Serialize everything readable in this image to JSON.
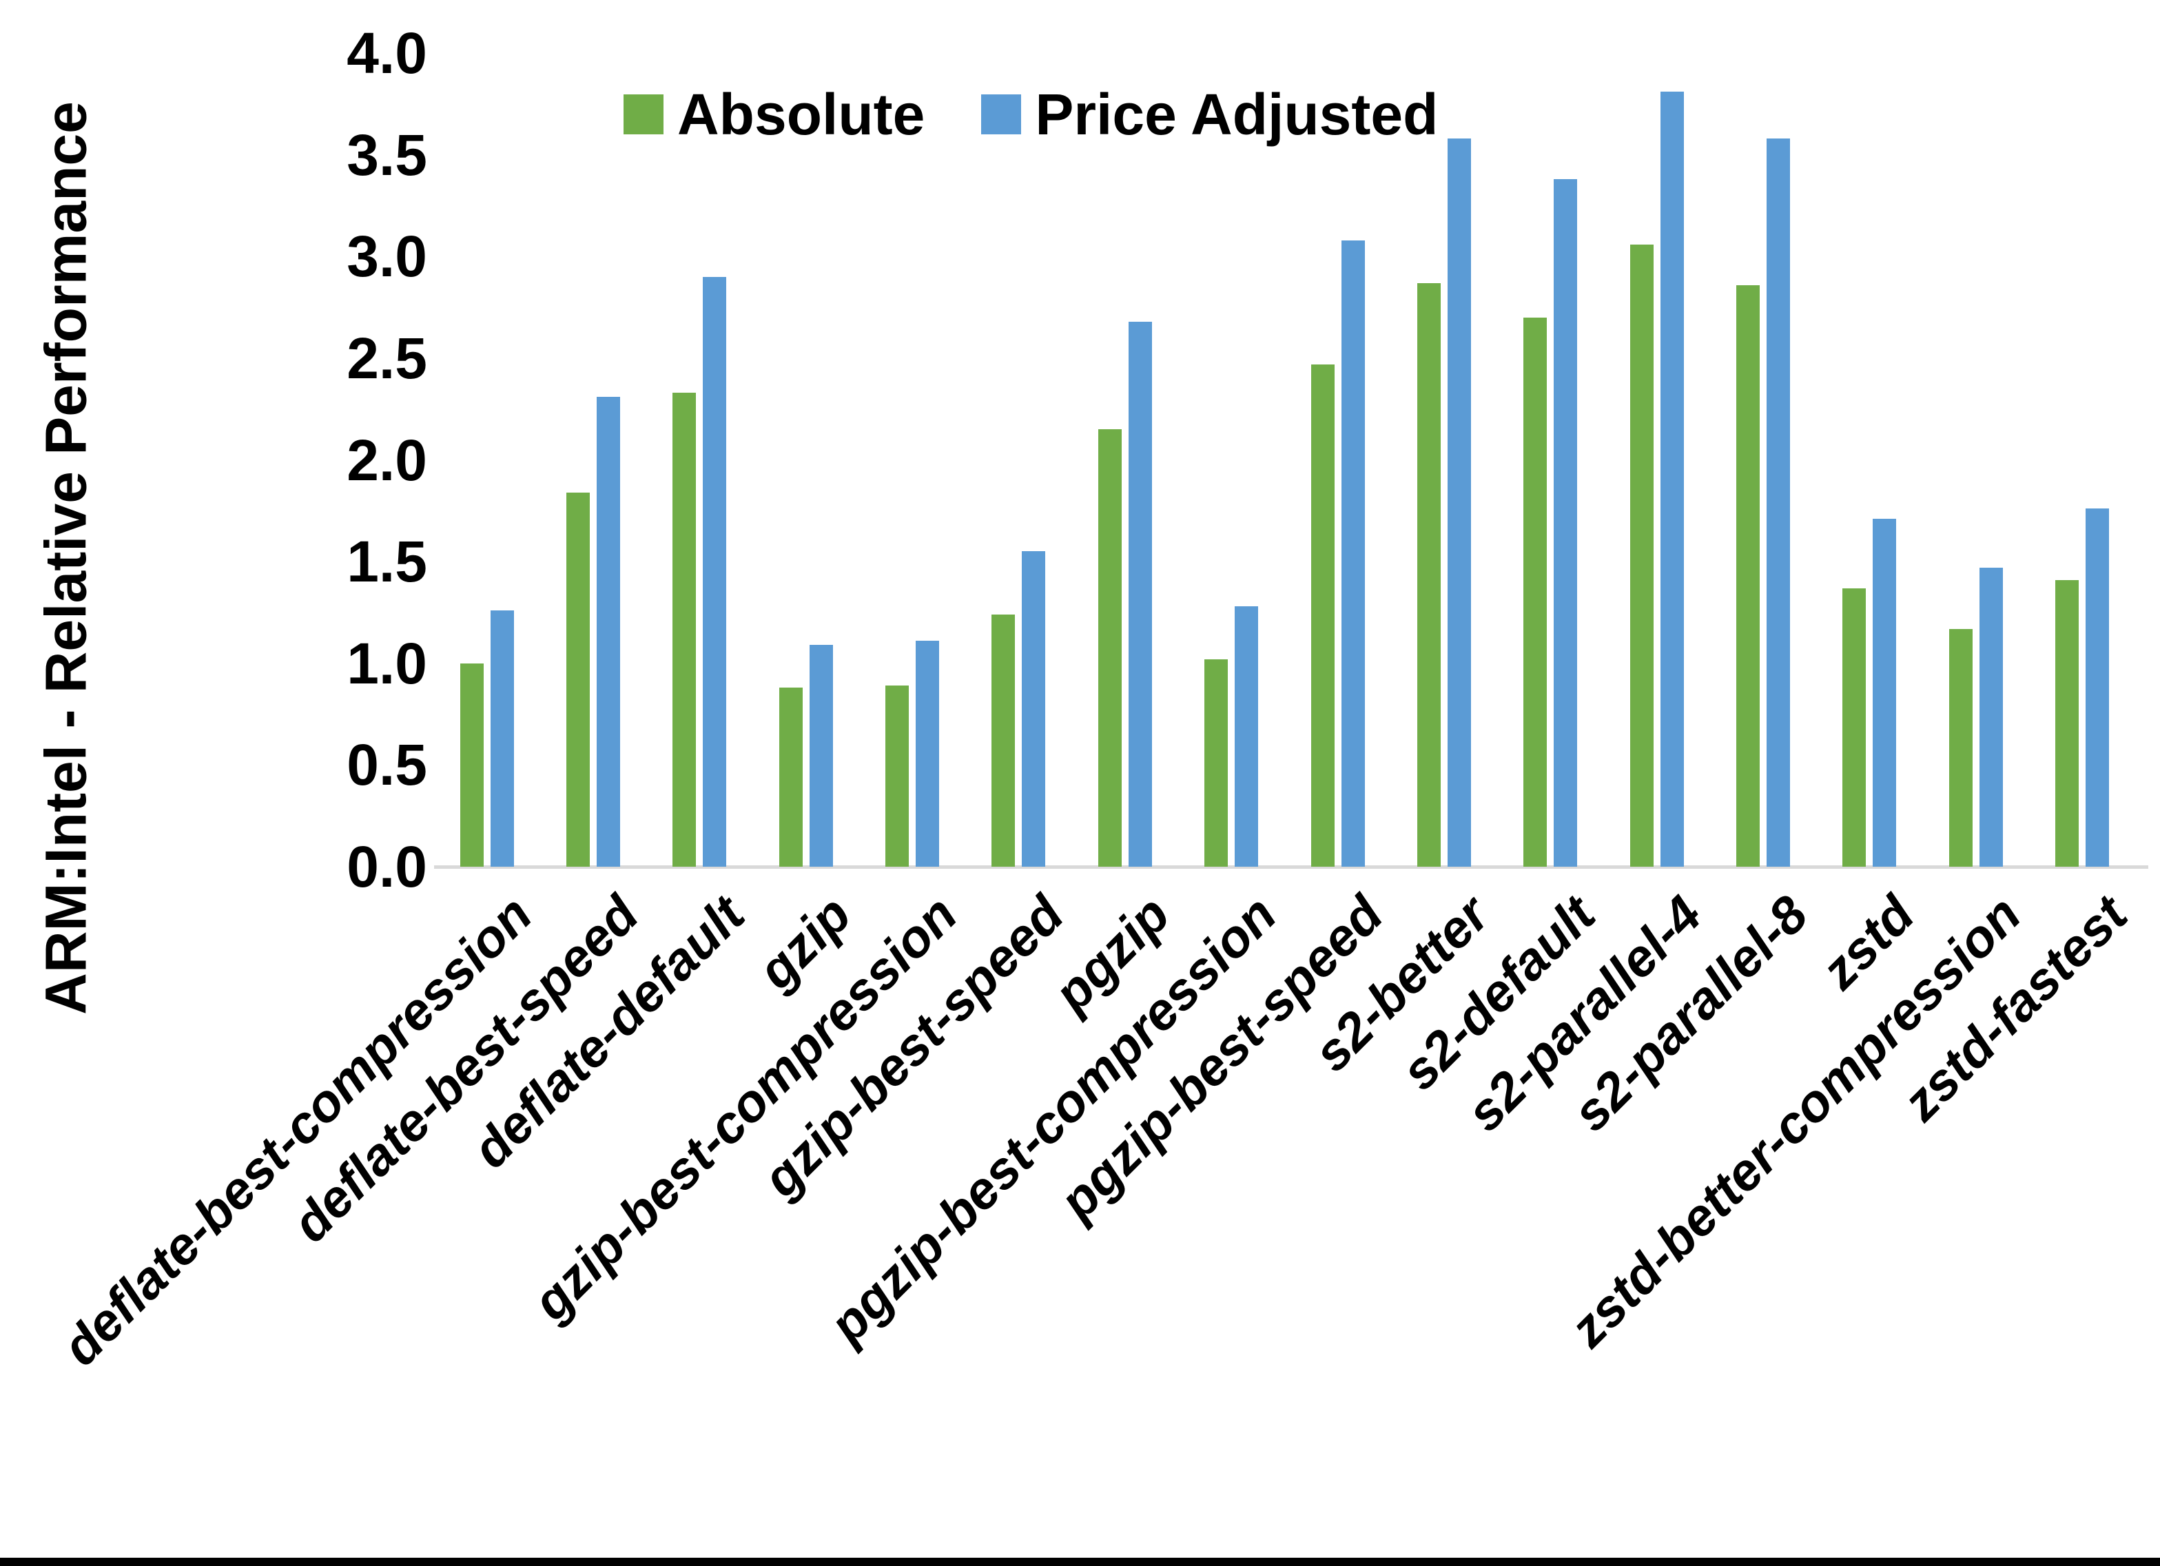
{
  "chart_data": {
    "type": "bar",
    "title": "",
    "ylabel": "ARM:Intel - Relative Performance",
    "xlabel": "",
    "ylim": [
      0.0,
      4.0
    ],
    "ytick_labels": [
      "4.0",
      "3.5",
      "3.0",
      "2.5",
      "2.0",
      "1.5",
      "1.0",
      "0.5",
      "0.0"
    ],
    "grid": false,
    "legend_position": "top-center",
    "categories": [
      "deflate-best-compression",
      "deflate-best-speed",
      "deflate-default",
      "gzip",
      "gzip-best-compression",
      "gzip-best-speed",
      "pgzip",
      "pgzip-best-compression",
      "pgzip-best-speed",
      "s2-better",
      "s2-default",
      "s2-parallel-4",
      "s2-parallel-8",
      "zstd",
      "zstd-better-compression",
      "zstd-fastest"
    ],
    "series": [
      {
        "name": "Absolute",
        "color": "#70AD47",
        "values": [
          1.0,
          1.84,
          2.33,
          0.88,
          0.89,
          1.24,
          2.15,
          1.02,
          2.47,
          2.87,
          2.7,
          3.06,
          2.86,
          1.37,
          1.17,
          1.41
        ]
      },
      {
        "name": "Price Adjusted",
        "color": "#5B9BD5",
        "values": [
          1.26,
          2.31,
          2.9,
          1.09,
          1.11,
          1.55,
          2.68,
          1.28,
          3.08,
          3.58,
          3.38,
          3.81,
          3.58,
          1.71,
          1.47,
          1.76
        ]
      }
    ],
    "axis_line_color": "#D9D9D9",
    "text_color": "#000000",
    "background_color": "#FFFFFF",
    "bottom_border_color": "#000000"
  }
}
